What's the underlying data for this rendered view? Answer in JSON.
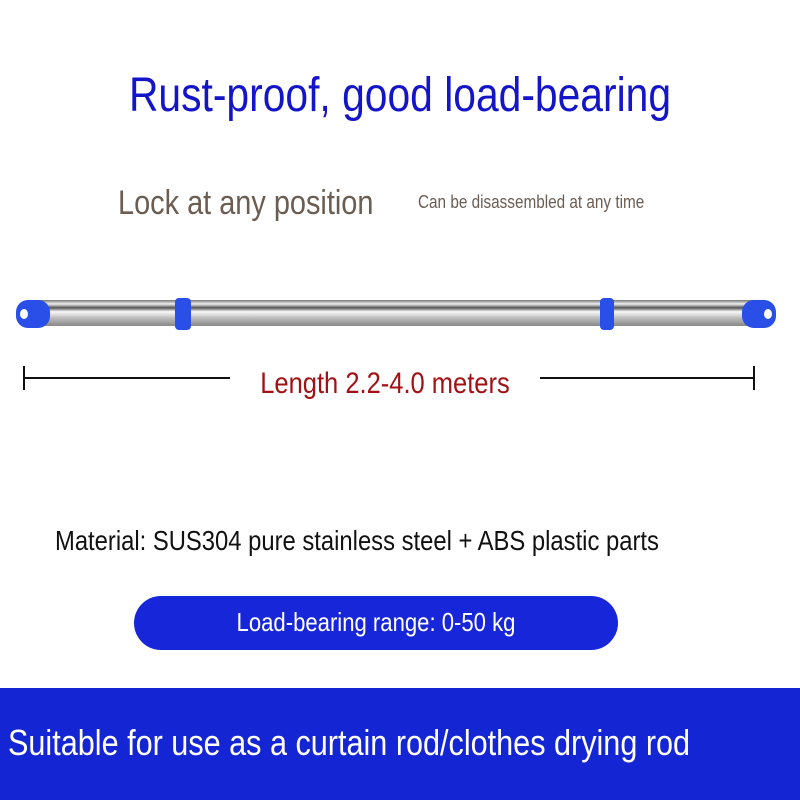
{
  "headline": "Rust-proof, good load-bearing",
  "feature_lock": "Lock at any position",
  "feature_disassemble": "Can be disassembled at any time",
  "length_label": "Length 2.2-4.0 meters",
  "material": "Material: SUS304 pure stainless steel + ABS plastic parts",
  "load_bearing": "Load-bearing range: 0-50 kg",
  "usage": "Suitable for use as a curtain rod/clothes drying rod",
  "colors": {
    "accent": "#1426d4",
    "headline": "#1414c8",
    "length": "#a01216"
  }
}
